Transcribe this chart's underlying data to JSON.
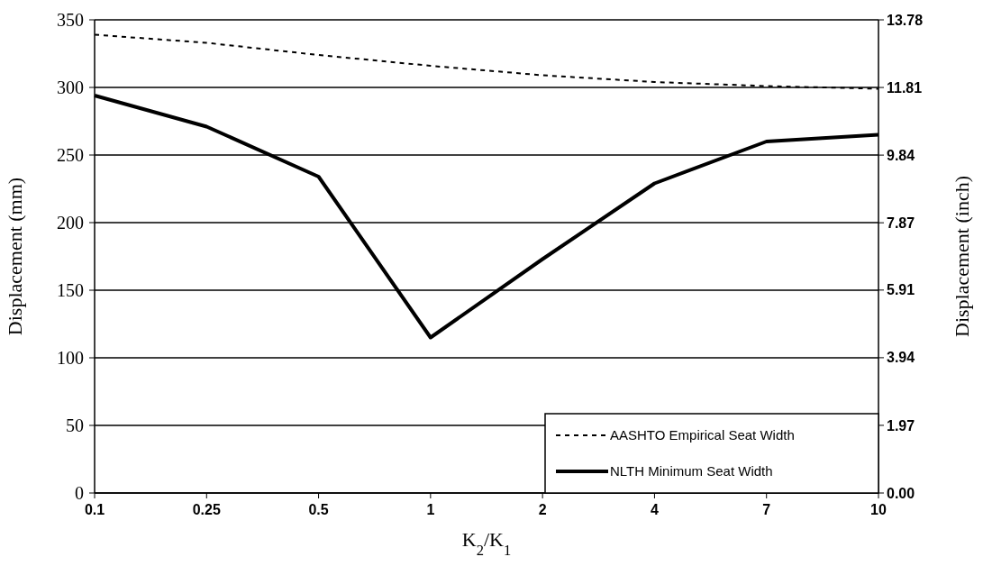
{
  "chart_data": {
    "type": "line",
    "categories": [
      "0.1",
      "0.25",
      "0.5",
      "1",
      "2",
      "4",
      "7",
      "10"
    ],
    "xlabel": "K$_{2}$/K$_{1}$",
    "ylabel": "Displacement (mm)",
    "y2label": "Displacement (inch)",
    "ylim": [
      0,
      350
    ],
    "yticks": [
      0,
      50,
      100,
      150,
      200,
      250,
      300,
      350
    ],
    "y2lim": [
      0,
      13.78
    ],
    "y2ticks": [
      {
        "value": 0,
        "label": "0.00"
      },
      1.97,
      3.94,
      5.91,
      7.87,
      9.84,
      11.81,
      13.78
    ],
    "grid": "y",
    "legend": "bottom right",
    "marker": "none",
    "series": [
      {
        "name": "AASHTO Empirical Seat Width",
        "color": "#000000",
        "line_style": "dashed",
        "values": [
          339,
          333,
          324,
          316,
          309,
          304,
          301,
          299
        ]
      },
      {
        "name": "NLTH Minimum Seat Width",
        "color": "#000000",
        "line_style": "solid",
        "values": [
          294,
          271,
          234,
          115,
          173,
          229,
          260,
          265
        ]
      }
    ]
  }
}
